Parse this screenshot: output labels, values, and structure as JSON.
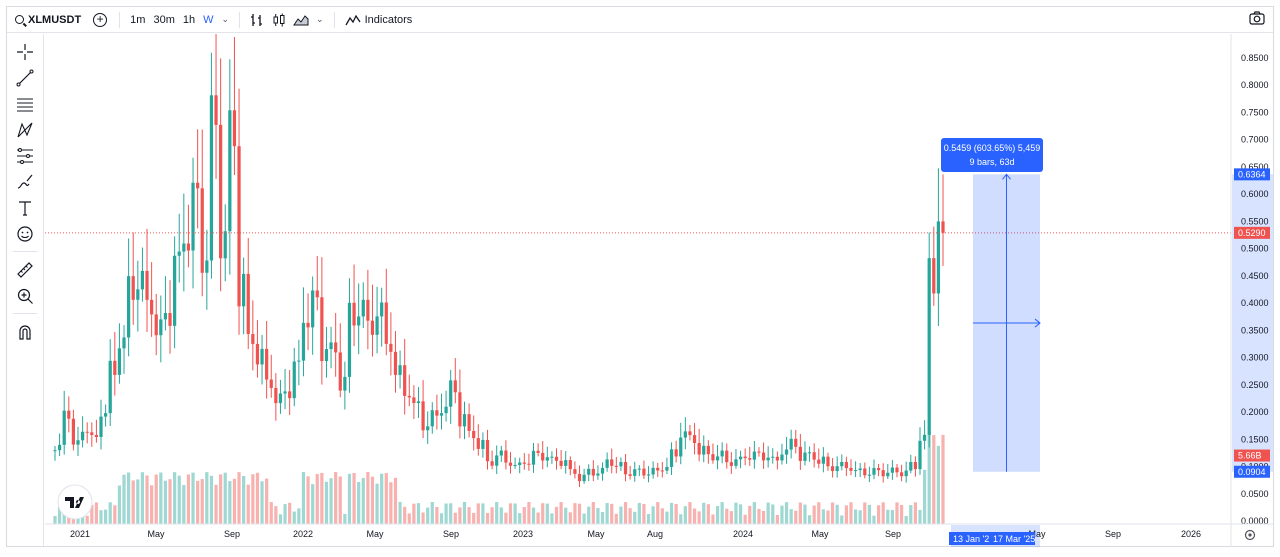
{
  "toolbar": {
    "symbol": "XLMUSDT",
    "intervals": [
      "1m",
      "30m",
      "1h",
      "W"
    ],
    "active_interval": "W",
    "indicators_label": "Indicators"
  },
  "icons": {
    "left": [
      "crosshair-icon",
      "trend-line-icon",
      "horizontal-lines-icon",
      "pattern-icon",
      "fib-icon",
      "brush-icon",
      "text-icon",
      "emoji-icon",
      "ruler-icon",
      "zoom-in-icon",
      "magnet-icon"
    ],
    "colors": {
      "up": "#26a69a",
      "down": "#ef5350",
      "up_volume": "#9fd8d2",
      "down_volume": "#f7b2b0",
      "accent": "#2962ff"
    }
  },
  "chart_data": {
    "type": "candlestick",
    "symbol": "XLMUSDT",
    "interval": "W",
    "ylim": [
      0.0,
      0.85
    ],
    "y_ticks": [
      "0.8500",
      "0.8000",
      "0.7500",
      "0.7000",
      "0.6500",
      "0.6000",
      "0.5500",
      "0.5000",
      "0.4500",
      "0.4000",
      "0.3500",
      "0.3000",
      "0.2500",
      "0.2000",
      "0.1500",
      "0.1000",
      "0.0500",
      "0.0000"
    ],
    "x_ticks": [
      "2021",
      "May",
      "Sep",
      "2022",
      "May",
      "Sep",
      "2023",
      "May",
      "Aug",
      "2024",
      "May",
      "Sep",
      "May",
      "Sep",
      "2026"
    ],
    "price_path": [
      [
        0.13,
        0.2,
        0.14
      ],
      [
        0.17,
        0.15,
        0.2
      ],
      [
        0.27,
        0.33,
        0.42
      ],
      [
        0.44,
        0.4,
        0.35
      ],
      [
        0.38,
        0.47,
        0.52
      ],
      [
        0.59,
        0.49,
        0.72
      ],
      [
        0.53,
        0.7,
        0.44
      ],
      [
        0.34,
        0.3,
        0.26
      ],
      [
        0.22,
        0.24,
        0.28
      ],
      [
        0.37,
        0.4,
        0.32
      ],
      [
        0.31,
        0.26,
        0.37
      ],
      [
        0.39,
        0.36,
        0.38
      ],
      [
        0.33,
        0.27,
        0.24
      ],
      [
        0.21,
        0.18,
        0.19
      ],
      [
        0.21,
        0.24,
        0.19
      ],
      [
        0.16,
        0.14,
        0.11
      ],
      [
        0.12,
        0.11,
        0.1
      ],
      [
        0.11,
        0.12,
        0.12
      ],
      [
        0.11,
        0.11,
        0.09
      ],
      [
        0.08,
        0.09,
        0.09
      ],
      [
        0.11,
        0.1,
        0.09
      ],
      [
        0.09,
        0.09,
        0.09
      ],
      [
        0.1,
        0.12,
        0.16
      ],
      [
        0.15,
        0.13,
        0.12
      ],
      [
        0.12,
        0.11,
        0.11
      ],
      [
        0.12,
        0.12,
        0.12
      ],
      [
        0.11,
        0.13,
        0.14
      ],
      [
        0.12,
        0.12,
        0.11
      ],
      [
        0.1,
        0.1,
        0.1
      ],
      [
        0.09,
        0.09,
        0.09
      ],
      [
        0.09,
        0.09,
        0.09
      ],
      [
        0.1,
        0.15,
        0.44
      ]
    ],
    "volume_tick": "5.66B",
    "last_price": "0.5290",
    "measure": {
      "line1": "0.5459 (603.65%) 5,459",
      "line2": "9 bars, 63d",
      "top_price": "0.6364",
      "bottom_price": "0.0904",
      "start_date": "13 Jan '2",
      "end_date": "17 Mar '25"
    }
  }
}
